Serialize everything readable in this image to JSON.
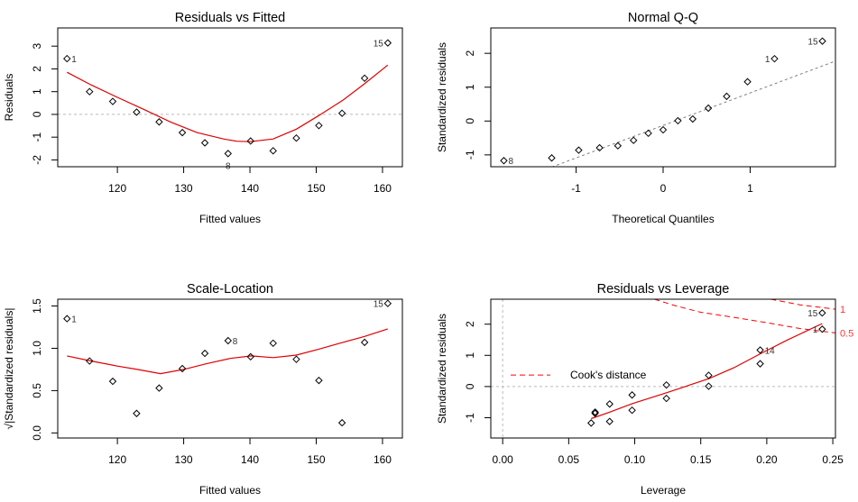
{
  "chart_data": [
    {
      "type": "scatter",
      "id": "residuals-vs-fitted",
      "title": "Residuals vs Fitted",
      "xlabel": "Fitted values",
      "ylabel": "Residuals",
      "xlim": [
        111,
        163
      ],
      "ylim": [
        -2.3,
        3.8
      ],
      "xticks": [
        120,
        130,
        140,
        150,
        160
      ],
      "yticks": [
        -2,
        -1,
        0,
        1,
        2,
        3
      ],
      "points": [
        {
          "x": 112.4,
          "y": 2.45,
          "label": "1"
        },
        {
          "x": 115.8,
          "y": 1.0
        },
        {
          "x": 119.3,
          "y": 0.57
        },
        {
          "x": 122.9,
          "y": 0.1
        },
        {
          "x": 126.3,
          "y": -0.33
        },
        {
          "x": 129.8,
          "y": -0.8
        },
        {
          "x": 133.2,
          "y": -1.25
        },
        {
          "x": 136.7,
          "y": -1.72,
          "label": "8"
        },
        {
          "x": 140.1,
          "y": -1.17
        },
        {
          "x": 143.5,
          "y": -1.6
        },
        {
          "x": 147.0,
          "y": -1.04
        },
        {
          "x": 150.4,
          "y": -0.49
        },
        {
          "x": 153.9,
          "y": 0.05
        },
        {
          "x": 157.3,
          "y": 1.59
        },
        {
          "x": 160.8,
          "y": 3.14,
          "label": "15"
        }
      ],
      "smooth": [
        [
          112.4,
          1.85
        ],
        [
          116,
          1.3
        ],
        [
          120,
          0.75
        ],
        [
          124,
          0.22
        ],
        [
          128,
          -0.33
        ],
        [
          132,
          -0.8
        ],
        [
          136,
          -1.08
        ],
        [
          138,
          -1.18
        ],
        [
          140,
          -1.2
        ],
        [
          143.5,
          -1.08
        ],
        [
          147,
          -0.65
        ],
        [
          150.4,
          -0.05
        ],
        [
          154,
          0.62
        ],
        [
          157.3,
          1.35
        ],
        [
          160.8,
          2.17
        ]
      ],
      "reference_line": {
        "y": 0
      }
    },
    {
      "type": "scatter",
      "id": "normal-qq",
      "title": "Normal Q-Q",
      "xlabel": "Theoretical Quantiles",
      "ylabel": "Standardized residuals",
      "xlim": [
        -1.98,
        1.98
      ],
      "ylim": [
        -1.35,
        2.75
      ],
      "xticks": [
        -1,
        0,
        1
      ],
      "yticks": [
        -1,
        0,
        1,
        2
      ],
      "points": [
        {
          "x": -1.83,
          "y": -1.17,
          "label": "8",
          "label_side": "right"
        },
        {
          "x": -1.28,
          "y": -1.09
        },
        {
          "x": -0.97,
          "y": -0.86
        },
        {
          "x": -0.73,
          "y": -0.79
        },
        {
          "x": -0.52,
          "y": -0.73
        },
        {
          "x": -0.34,
          "y": -0.57
        },
        {
          "x": -0.17,
          "y": -0.36
        },
        {
          "x": 0.0,
          "y": -0.26
        },
        {
          "x": 0.17,
          "y": 0.01
        },
        {
          "x": 0.34,
          "y": 0.06
        },
        {
          "x": 0.52,
          "y": 0.38
        },
        {
          "x": 0.73,
          "y": 0.73
        },
        {
          "x": 0.97,
          "y": 1.16
        },
        {
          "x": 1.28,
          "y": 1.84,
          "label": "1"
        },
        {
          "x": 1.83,
          "y": 2.36,
          "label": "15"
        }
      ],
      "reference_line": {
        "intercept": -0.13,
        "slope": 0.96
      }
    },
    {
      "type": "scatter",
      "id": "scale-location",
      "title": "Scale-Location",
      "xlabel": "Fitted values",
      "ylabel": "√|Standardized residuals|",
      "xlim": [
        111,
        163
      ],
      "ylim": [
        -0.06,
        1.58
      ],
      "xticks": [
        120,
        130,
        140,
        150,
        160
      ],
      "yticks": [
        0.0,
        0.5,
        1.0,
        1.5
      ],
      "ytick_labels": [
        "0.0",
        "0.5",
        "1.0",
        "1.5"
      ],
      "points": [
        {
          "x": 112.4,
          "y": 1.35,
          "label": "1"
        },
        {
          "x": 115.8,
          "y": 0.85
        },
        {
          "x": 119.3,
          "y": 0.61
        },
        {
          "x": 122.9,
          "y": 0.23
        },
        {
          "x": 126.3,
          "y": 0.53
        },
        {
          "x": 129.8,
          "y": 0.76
        },
        {
          "x": 133.2,
          "y": 0.94
        },
        {
          "x": 136.7,
          "y": 1.09,
          "label": "8",
          "label_side": "right"
        },
        {
          "x": 140.1,
          "y": 0.9
        },
        {
          "x": 143.5,
          "y": 1.06
        },
        {
          "x": 147.0,
          "y": 0.87
        },
        {
          "x": 150.4,
          "y": 0.62
        },
        {
          "x": 153.9,
          "y": 0.12
        },
        {
          "x": 157.3,
          "y": 1.07
        },
        {
          "x": 160.8,
          "y": 1.53,
          "label": "15"
        }
      ],
      "smooth": [
        [
          112.4,
          0.91
        ],
        [
          116,
          0.85
        ],
        [
          120,
          0.79
        ],
        [
          123,
          0.75
        ],
        [
          126.5,
          0.7
        ],
        [
          130,
          0.75
        ],
        [
          133.5,
          0.82
        ],
        [
          137,
          0.88
        ],
        [
          140.2,
          0.91
        ],
        [
          143.5,
          0.89
        ],
        [
          147,
          0.92
        ],
        [
          150.4,
          0.99
        ],
        [
          154,
          1.07
        ],
        [
          157.3,
          1.14
        ],
        [
          160.8,
          1.23
        ]
      ]
    },
    {
      "type": "scatter",
      "id": "residuals-vs-leverage",
      "title": "Residuals vs Leverage",
      "xlabel": "Leverage",
      "ylabel": "Standardized residuals",
      "xlim": [
        -0.009,
        0.252
      ],
      "ylim": [
        -1.65,
        2.8
      ],
      "xticks": [
        0.0,
        0.05,
        0.1,
        0.15,
        0.2,
        0.25
      ],
      "xtick_labels": [
        "0.00",
        "0.05",
        "0.10",
        "0.15",
        "0.20",
        "0.25"
      ],
      "yticks": [
        -1,
        0,
        1,
        2
      ],
      "points": [
        {
          "x": 0.067,
          "y": -1.17
        },
        {
          "x": 0.07,
          "y": -0.86
        },
        {
          "x": 0.07,
          "y": -0.82
        },
        {
          "x": 0.081,
          "y": -1.12
        },
        {
          "x": 0.081,
          "y": -0.56
        },
        {
          "x": 0.098,
          "y": -0.76
        },
        {
          "x": 0.098,
          "y": -0.27
        },
        {
          "x": 0.124,
          "y": -0.38
        },
        {
          "x": 0.124,
          "y": 0.05
        },
        {
          "x": 0.156,
          "y": 0.01
        },
        {
          "x": 0.156,
          "y": 0.36
        },
        {
          "x": 0.195,
          "y": 0.73
        },
        {
          "x": 0.195,
          "y": 1.17,
          "label": "14",
          "label_side": "right"
        },
        {
          "x": 0.242,
          "y": 1.84,
          "label": "1"
        },
        {
          "x": 0.242,
          "y": 2.36,
          "label": "15"
        }
      ],
      "smooth": [
        [
          0.067,
          -1.03
        ],
        [
          0.081,
          -0.82
        ],
        [
          0.098,
          -0.55
        ],
        [
          0.124,
          -0.2
        ],
        [
          0.156,
          0.25
        ],
        [
          0.175,
          0.6
        ],
        [
          0.195,
          1.05
        ],
        [
          0.215,
          1.48
        ],
        [
          0.242,
          2.02
        ]
      ],
      "cooks_distance": [
        {
          "level": "0.5",
          "points": [
            [
              0.115,
              2.8
            ],
            [
              0.13,
              2.6
            ],
            [
              0.15,
              2.38
            ],
            [
              0.175,
              2.22
            ],
            [
              0.2,
              2.05
            ],
            [
              0.225,
              1.86
            ],
            [
              0.252,
              1.72
            ]
          ]
        },
        {
          "level": "1",
          "points": [
            [
              0.203,
              2.8
            ],
            [
              0.225,
              2.62
            ],
            [
              0.252,
              2.48
            ]
          ]
        }
      ],
      "reference_lines": {
        "y": 0,
        "x": 0
      },
      "legend": {
        "label": "Cook's distance",
        "placement": "left-middle"
      }
    }
  ],
  "colors": {
    "smooth": "#e00000",
    "cooks": "#ff0000",
    "cooks_label": "#ff3333",
    "reference": "#bbbbbb",
    "qq_line": "#808080",
    "axis": "#000000"
  }
}
